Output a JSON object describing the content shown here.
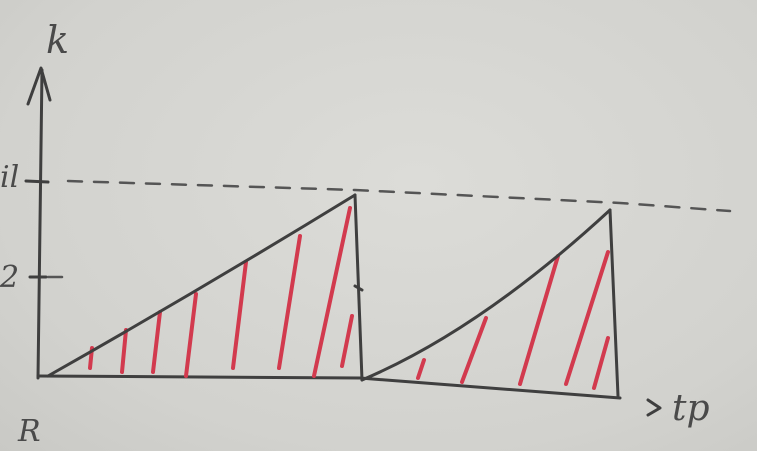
{
  "labels": {
    "y_axis": "k",
    "x_axis": "tp",
    "level_upper": "il",
    "level_lower": "2",
    "corner": "R"
  },
  "colors": {
    "board": "#d6d6d2",
    "marker_dark": "#3f3f3f",
    "dashes": "#555555",
    "hatch_red": "#d23a4e"
  }
}
